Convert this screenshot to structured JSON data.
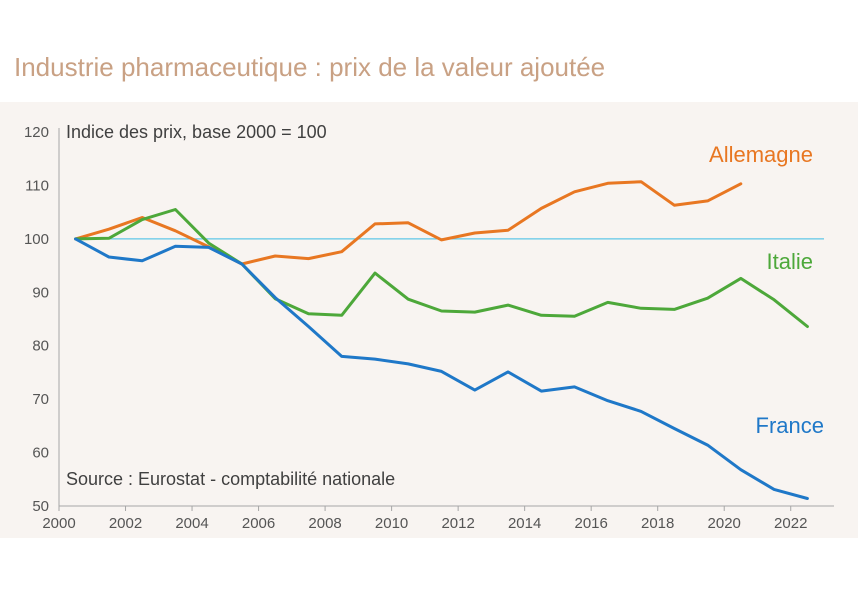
{
  "title": "Industrie pharmaceutique : prix de la valeur ajoutée",
  "chart_data": {
    "type": "line",
    "title": "Industrie pharmaceutique : prix de la valeur ajoutée",
    "ylabel": "Indice des prix, base 2000 = 100",
    "source": "Source : Eurostat - comptabilité nationale",
    "xlim": [
      2000,
      2023
    ],
    "ylim": [
      50,
      120
    ],
    "x_ticks": [
      2000,
      2002,
      2004,
      2006,
      2008,
      2010,
      2012,
      2014,
      2016,
      2018,
      2020,
      2022
    ],
    "y_ticks": [
      50,
      60,
      70,
      80,
      90,
      100,
      110,
      120
    ],
    "reference_line": 100,
    "grid": false,
    "series": [
      {
        "name": "Allemagne",
        "color": "#e87722",
        "x": [
          2000.5,
          2001.5,
          2002.5,
          2003.5,
          2004.5,
          2005.5,
          2006.5,
          2007.5,
          2008.5,
          2009.5,
          2010.5,
          2011.5,
          2012.5,
          2013.5,
          2014.5,
          2015.5,
          2016.5,
          2017.5,
          2018.5,
          2019.5,
          2020.5
        ],
        "values": [
          100,
          101.8,
          104,
          101.5,
          98.5,
          95.3,
          96.8,
          96.3,
          97.6,
          102.8,
          103,
          99.8,
          101.1,
          101.6,
          105.7,
          108.8,
          110.4,
          110.7,
          106.3,
          107.1,
          110.3
        ]
      },
      {
        "name": "Italie",
        "color": "#4da83a",
        "x": [
          2000.5,
          2001.5,
          2002.5,
          2003.5,
          2004.5,
          2005.5,
          2006.5,
          2007.5,
          2008.5,
          2009.5,
          2010.5,
          2011.5,
          2012.5,
          2013.5,
          2014.5,
          2015.5,
          2016.5,
          2017.5,
          2018.5,
          2019.5,
          2020.5,
          2021.5,
          2022.5
        ],
        "values": [
          100,
          100.1,
          103.6,
          105.5,
          99.2,
          95.3,
          88.8,
          86,
          85.7,
          93.6,
          88.7,
          86.5,
          86.3,
          87.6,
          85.7,
          85.5,
          88.1,
          87,
          86.8,
          88.9,
          92.6,
          88.6,
          83.6
        ]
      },
      {
        "name": "France",
        "color": "#1f78c8",
        "x": [
          2000.5,
          2001.5,
          2002.5,
          2003.5,
          2004.5,
          2005.5,
          2006.5,
          2007.5,
          2008.5,
          2009.5,
          2010.5,
          2011.5,
          2012.5,
          2013.5,
          2014.5,
          2015.5,
          2016.5,
          2017.5,
          2018.5,
          2019.5,
          2020.5,
          2021.5,
          2022.5
        ],
        "values": [
          100,
          96.6,
          95.9,
          98.6,
          98.4,
          95.3,
          89,
          83.6,
          78,
          77.5,
          76.6,
          75.2,
          71.7,
          75.1,
          71.5,
          72.3,
          69.7,
          67.7,
          64.5,
          61.4,
          56.8,
          53.1,
          51.4
        ]
      }
    ]
  }
}
